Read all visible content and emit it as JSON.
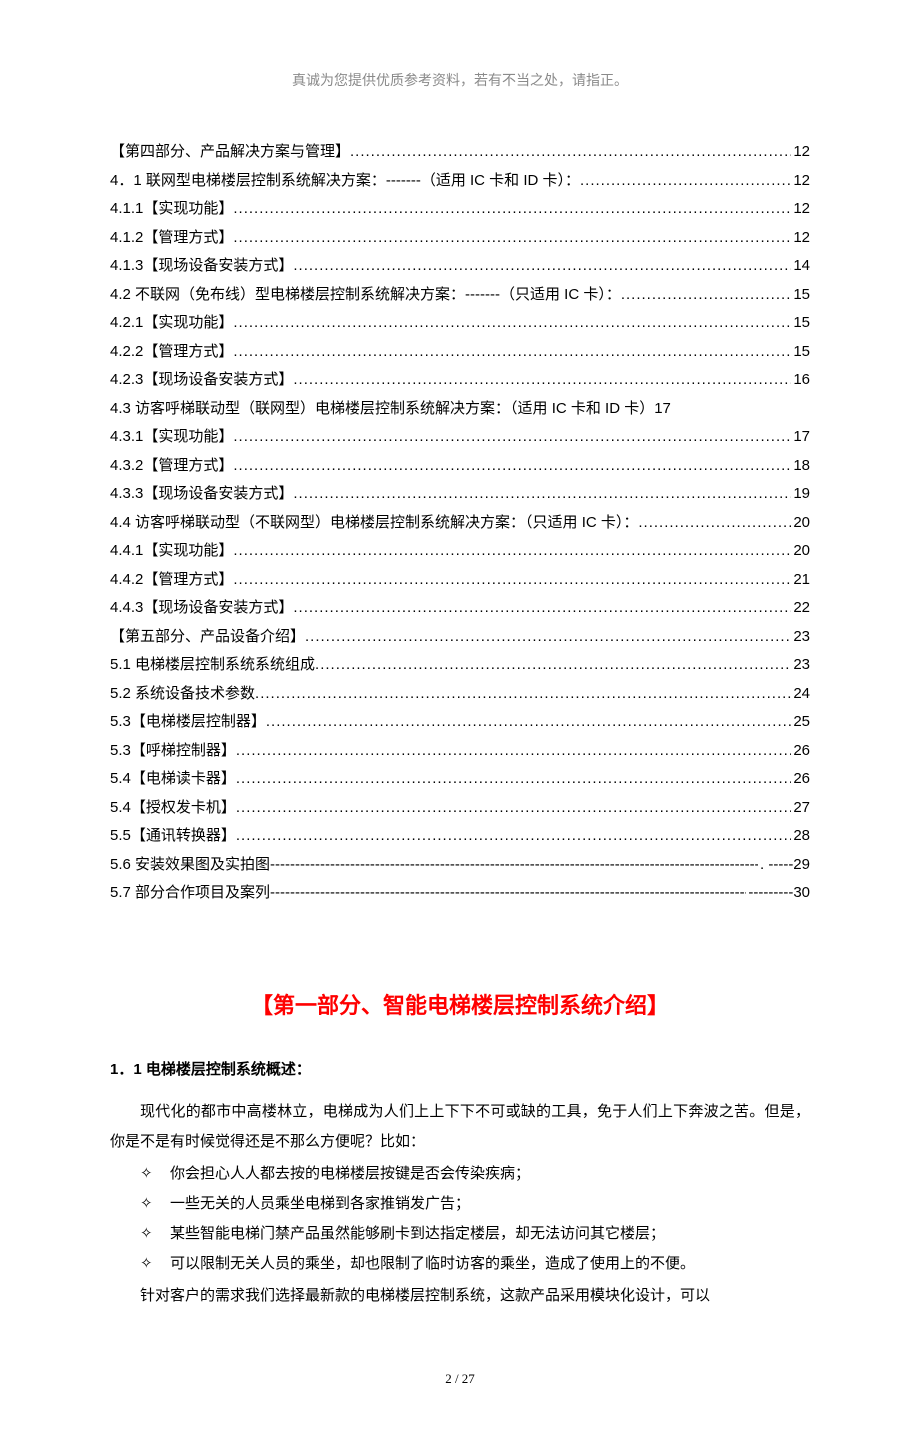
{
  "header_note": "真诚为您提供优质参考资料，若有不当之处，请指正。",
  "toc": [
    {
      "title": "【第四部分、产品解决方案与管理】",
      "leader": "dots",
      "page": "12"
    },
    {
      "title": "4．1 联网型电梯楼层控制系统解决方案：-------（适用 IC 卡和 ID 卡）：",
      "leader": "dots",
      "page": "12"
    },
    {
      "title": "4.1.1【实现功能】",
      "leader": "dots",
      "page": "12"
    },
    {
      "title": "4.1.2【管理方式】",
      "leader": "dots",
      "page": "12"
    },
    {
      "title": "4.1.3【现场设备安装方式】",
      "leader": "dots",
      "page": "14"
    },
    {
      "title": "4.2 不联网（免布线）型电梯楼层控制系统解决方案：-------（只适用 IC 卡）：",
      "leader": "dots",
      "page": "15"
    },
    {
      "title": "4.2.1【实现功能】",
      "leader": "dots",
      "page": "15"
    },
    {
      "title": "4.2.2【管理方式】",
      "leader": "dots",
      "page": "15"
    },
    {
      "title": "4.2.3【现场设备安装方式】",
      "leader": "dots",
      "page": "16"
    },
    {
      "title": "4.3 访客呼梯联动型（联网型）电梯楼层控制系统解决方案：（适用 IC 卡和 ID 卡）17",
      "leader": "none",
      "page": ""
    },
    {
      "title": "4.3.1【实现功能】",
      "leader": "dots",
      "page": "17"
    },
    {
      "title": "4.3.2【管理方式】",
      "leader": "dots",
      "page": "18"
    },
    {
      "title": "4.3.3【现场设备安装方式】",
      "leader": "dots",
      "page": "19"
    },
    {
      "title": "4.4 访客呼梯联动型（不联网型）电梯楼层控制系统解决方案：（只适用 IC 卡）：",
      "leader": "dots",
      "page": "20"
    },
    {
      "title": "4.4.1【实现功能】",
      "leader": "dots",
      "page": "20"
    },
    {
      "title": "4.4.2【管理方式】",
      "leader": "dots",
      "page": "21"
    },
    {
      "title": "4.4.3【现场设备安装方式】",
      "leader": "dots",
      "page": "22"
    },
    {
      "title": "【第五部分、产品设备介绍】",
      "leader": "dots",
      "page": "23"
    },
    {
      "title": "5.1 电梯楼层控制系统系统组成",
      "leader": "dots",
      "page": "23"
    },
    {
      "title": "5.2 系统设备技术参数",
      "leader": "dots",
      "page": "24"
    },
    {
      "title": "5.3【电梯楼层控制器】",
      "leader": "dots",
      "page": "25"
    },
    {
      "title": "5.3【呼梯控制器】",
      "leader": "dots",
      "page": "26"
    },
    {
      "title": "5.4【电梯读卡器】",
      "leader": "dots",
      "page": "26"
    },
    {
      "title": "5.4【授权发卡机】",
      "leader": "dots",
      "page": "27"
    },
    {
      "title": "5.5【通讯转换器】",
      "leader": "dots",
      "page": "28"
    },
    {
      "title": "5.6 安装效果图及实拍图",
      "leader": "dash",
      "page": ". -----29"
    },
    {
      "title": "5.7  部分合作项目及案列  ",
      "leader": "dash",
      "page": " ---------30"
    }
  ],
  "section_title": "【第一部分、智能电梯楼层控制系统介绍】",
  "subhead": "1．1 电梯楼层控制系统概述：",
  "para1": "现代化的都市中高楼林立，电梯成为人们上上下下不可或缺的工具，免于人们上下奔波之苦。但是，你是不是有时候觉得还是不那么方便呢？比如：",
  "bullets": [
    "你会担心人人都去按的电梯楼层按键是否会传染疾病；",
    "一些无关的人员乘坐电梯到各家推销发广告；",
    "某些智能电梯门禁产品虽然能够刷卡到达指定楼层，却无法访问其它楼层；",
    "可以限制无关人员的乘坐，却也限制了临时访客的乘坐，造成了使用上的不便。"
  ],
  "para2": "针对客户的需求我们选择最新款的电梯楼层控制系统，这款产品采用模块化设计，可以",
  "footer": "2  /  27",
  "bullet_mark": "✧",
  "colors": {
    "title": "#ff0000",
    "header": "#8a8a8a",
    "text": "#000000",
    "bg": "#ffffff"
  }
}
